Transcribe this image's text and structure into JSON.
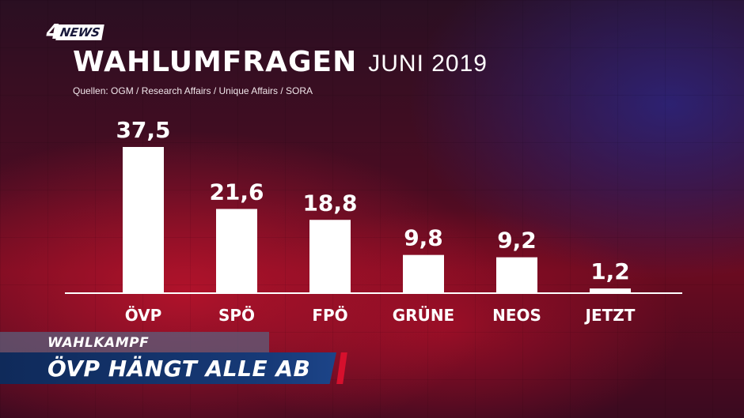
{
  "brand": {
    "logo_number": "4",
    "logo_text": "NEWS"
  },
  "header": {
    "title": "WAHLUMFRAGEN",
    "subtitle": "JUNI 2019",
    "sources": "Quellen: OGM / Research Affairs / Unique Affairs / SORA"
  },
  "lower_third": {
    "kicker": "WAHLKAMPF",
    "headline": "ÖVP HÄNGT ALLE AB"
  },
  "colors": {
    "bar": "#ffffff",
    "text": "#ffffff",
    "lower_third_bar": "#173a78",
    "accent": "#d6102d"
  },
  "chart_data": {
    "type": "bar",
    "title": "WAHLUMFRAGEN",
    "subtitle": "JUNI 2019",
    "xlabel": "",
    "ylabel": "",
    "categories": [
      "ÖVP",
      "SPÖ",
      "FPÖ",
      "GRÜNE",
      "NEOS",
      "JETZT"
    ],
    "values": [
      37.5,
      21.6,
      18.8,
      9.8,
      9.2,
      1.2
    ],
    "value_labels": [
      "37,5",
      "21,6",
      "18,8",
      "9,8",
      "9,2",
      "1,2"
    ],
    "ylim": [
      0,
      37.5
    ],
    "grid": false,
    "legend": "none"
  }
}
